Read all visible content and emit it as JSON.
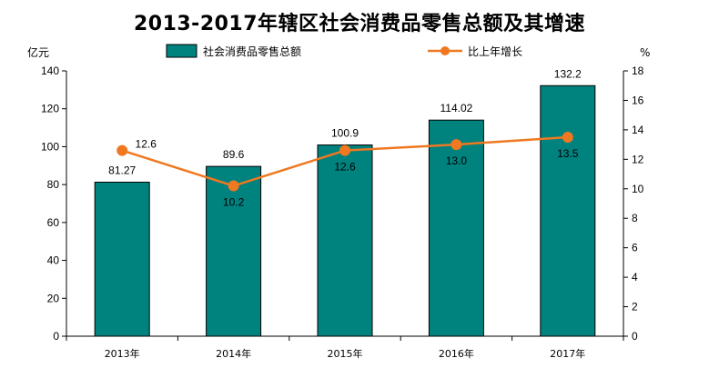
{
  "chart_data": {
    "type": "bar+line",
    "title": "2013-2017年辖区社会消费品零售总额及其增速",
    "categories": [
      "2013年",
      "2014年",
      "2015年",
      "2016年",
      "2017年"
    ],
    "series": [
      {
        "name": "社会消费品零售总额",
        "type": "bar",
        "axis": "left",
        "values": [
          81.27,
          89.6,
          100.9,
          114.02,
          132.2
        ],
        "labels": [
          "81.27",
          "89.6",
          "100.9",
          "114.02",
          "132.2"
        ],
        "color": "#00827f"
      },
      {
        "name": "比上年增长",
        "type": "line",
        "axis": "right",
        "values": [
          12.6,
          10.2,
          12.6,
          13.0,
          13.5
        ],
        "labels": [
          "12.6",
          "10.2",
          "12.6",
          "13.0",
          "13.5"
        ],
        "color": "#f07820"
      }
    ],
    "y_left": {
      "unit": "亿元",
      "min": 0,
      "max": 140,
      "step": 20
    },
    "y_right": {
      "unit": "%",
      "min": 0,
      "max": 18,
      "step": 2
    },
    "legend_position": "top",
    "grid": false
  }
}
